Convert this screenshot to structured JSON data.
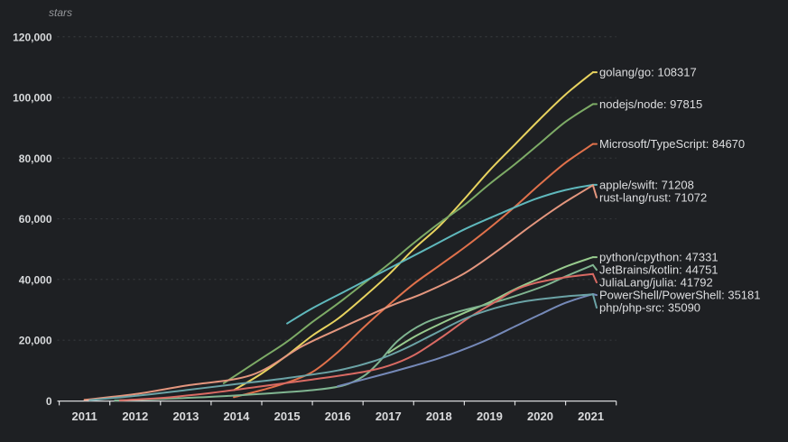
{
  "chart_data": {
    "type": "line",
    "title": "",
    "xlabel": "",
    "ylabel": "stars",
    "xlim": [
      2011,
      2022
    ],
    "ylim": [
      0,
      128000
    ],
    "grid": "horizontal dashed",
    "legend_position": "right edge end-of-line labels",
    "x_tick_labels": [
      "2011",
      "2012",
      "2013",
      "2014",
      "2015",
      "2016",
      "2017",
      "2018",
      "2019",
      "2020",
      "2021"
    ],
    "y_ticks": [
      0,
      20000,
      40000,
      60000,
      80000,
      100000,
      120000
    ],
    "y_tick_labels": [
      "0",
      "20,000",
      "40,000",
      "60,000",
      "80,000",
      "100,000",
      "120,000"
    ],
    "series": [
      {
        "name": "golang/go",
        "final_value": 108317,
        "label": "golang/go: 108317",
        "color": "#e8d35f",
        "points": [
          [
            2014.45,
            3500
          ],
          [
            2015,
            9000
          ],
          [
            2015.5,
            15000
          ],
          [
            2016,
            21500
          ],
          [
            2016.5,
            27000
          ],
          [
            2017,
            34000
          ],
          [
            2017.5,
            41500
          ],
          [
            2018,
            50000
          ],
          [
            2018.5,
            57500
          ],
          [
            2019,
            66500
          ],
          [
            2019.5,
            76000
          ],
          [
            2020,
            84500
          ],
          [
            2020.5,
            93000
          ],
          [
            2021,
            101000
          ],
          [
            2021.54,
            108317
          ]
        ]
      },
      {
        "name": "nodejs/node",
        "final_value": 97815,
        "label": "nodejs/node: 97815",
        "color": "#7dab66",
        "points": [
          [
            2014.25,
            5800
          ],
          [
            2015,
            14000
          ],
          [
            2015.5,
            19500
          ],
          [
            2016,
            26000
          ],
          [
            2016.5,
            32000
          ],
          [
            2017,
            38500
          ],
          [
            2017.5,
            45000
          ],
          [
            2018,
            52000
          ],
          [
            2018.5,
            58500
          ],
          [
            2019,
            64500
          ],
          [
            2019.5,
            71500
          ],
          [
            2020,
            78000
          ],
          [
            2020.5,
            85000
          ],
          [
            2021,
            92000
          ],
          [
            2021.54,
            97815
          ]
        ]
      },
      {
        "name": "Microsoft/TypeScript",
        "final_value": 84670,
        "label": "Microsoft/TypeScript: 84670",
        "color": "#e0714b",
        "points": [
          [
            2014.45,
            1200
          ],
          [
            2015,
            3500
          ],
          [
            2015.5,
            6000
          ],
          [
            2016,
            9500
          ],
          [
            2016.5,
            16000
          ],
          [
            2017,
            24000
          ],
          [
            2017.5,
            31500
          ],
          [
            2018,
            38500
          ],
          [
            2018.5,
            44500
          ],
          [
            2019,
            50500
          ],
          [
            2019.5,
            57000
          ],
          [
            2020,
            64000
          ],
          [
            2020.5,
            71500
          ],
          [
            2021,
            78500
          ],
          [
            2021.54,
            84670
          ]
        ]
      },
      {
        "name": "apple/swift",
        "final_value": 71208,
        "label": "apple/swift: 71208",
        "color": "#5fb8bc",
        "points": [
          [
            2015.5,
            25500
          ],
          [
            2016,
            30500
          ],
          [
            2016.75,
            37000
          ],
          [
            2017.5,
            43500
          ],
          [
            2018.25,
            50000
          ],
          [
            2019,
            56500
          ],
          [
            2019.75,
            62000
          ],
          [
            2020.4,
            66500
          ],
          [
            2021,
            69500
          ],
          [
            2021.54,
            71208
          ]
        ]
      },
      {
        "name": "rust-lang/rust",
        "final_value": 71072,
        "label": "rust-lang/rust: 71072",
        "color": "#e4967e",
        "points": [
          [
            2011.5,
            300
          ],
          [
            2012.5,
            2200
          ],
          [
            2013.5,
            5000
          ],
          [
            2014.8,
            8500
          ],
          [
            2015.8,
            18000
          ],
          [
            2016.5,
            23500
          ],
          [
            2017.5,
            31000
          ],
          [
            2018.2,
            35500
          ],
          [
            2019,
            42000
          ],
          [
            2019.7,
            50000
          ],
          [
            2020.3,
            57500
          ],
          [
            2020.9,
            64500
          ],
          [
            2021.54,
            71072
          ]
        ]
      },
      {
        "name": "python/cpython",
        "final_value": 47331,
        "label": "python/cpython: 47331",
        "color": "#98cb8e",
        "points": [
          [
            2017.5,
            15800
          ],
          [
            2018,
            21000
          ],
          [
            2018.5,
            25200
          ],
          [
            2019,
            29000
          ],
          [
            2019.5,
            32500
          ],
          [
            2020,
            36800
          ],
          [
            2020.5,
            40500
          ],
          [
            2021,
            44200
          ],
          [
            2021.54,
            47331
          ]
        ]
      },
      {
        "name": "JetBrains/kotlin",
        "final_value": 44751,
        "label": "JetBrains/kotlin: 44751",
        "color": "#80b591",
        "points": [
          [
            2012.1,
            100
          ],
          [
            2013,
            600
          ],
          [
            2014,
            1300
          ],
          [
            2015,
            2300
          ],
          [
            2016,
            3500
          ],
          [
            2016.6,
            5000
          ],
          [
            2017,
            8000
          ],
          [
            2017.3,
            12500
          ],
          [
            2017.7,
            20000
          ],
          [
            2018.2,
            25500
          ],
          [
            2018.8,
            29000
          ],
          [
            2019.5,
            32000
          ],
          [
            2020,
            34500
          ],
          [
            2020.6,
            38000
          ],
          [
            2021,
            41000
          ],
          [
            2021.54,
            44751
          ]
        ]
      },
      {
        "name": "JuliaLang/julia",
        "final_value": 41792,
        "label": "JuliaLang/julia: 41792",
        "color": "#d96a63",
        "points": [
          [
            2012.2,
            150
          ],
          [
            2013,
            900
          ],
          [
            2014,
            2600
          ],
          [
            2015,
            4800
          ],
          [
            2016,
            7000
          ],
          [
            2017,
            9500
          ],
          [
            2017.5,
            11500
          ],
          [
            2018,
            15000
          ],
          [
            2018.6,
            21500
          ],
          [
            2019.1,
            27500
          ],
          [
            2019.6,
            32500
          ],
          [
            2020,
            36500
          ],
          [
            2020.4,
            38800
          ],
          [
            2021,
            40700
          ],
          [
            2021.54,
            41792
          ]
        ]
      },
      {
        "name": "PowerShell/PowerShell",
        "final_value": 35181,
        "label": "PowerShell/PowerShell: 35181",
        "color": "#7589b8",
        "points": [
          [
            2016.5,
            4800
          ],
          [
            2017,
            7000
          ],
          [
            2017.5,
            9200
          ],
          [
            2018,
            11500
          ],
          [
            2018.5,
            14000
          ],
          [
            2019,
            17000
          ],
          [
            2019.5,
            20500
          ],
          [
            2020,
            24500
          ],
          [
            2020.5,
            28500
          ],
          [
            2021,
            32300
          ],
          [
            2021.54,
            35181
          ]
        ]
      },
      {
        "name": "php/php-src",
        "final_value": 35090,
        "label": "php/php-src: 35090",
        "color": "#6ba3a6",
        "points": [
          [
            2011.6,
            200
          ],
          [
            2012.5,
            1600
          ],
          [
            2013.5,
            3500
          ],
          [
            2014.5,
            5500
          ],
          [
            2015.5,
            7500
          ],
          [
            2016.5,
            10000
          ],
          [
            2017.2,
            13000
          ],
          [
            2017.8,
            17000
          ],
          [
            2018.4,
            22000
          ],
          [
            2019,
            27000
          ],
          [
            2019.6,
            30500
          ],
          [
            2020.2,
            32800
          ],
          [
            2021,
            34400
          ],
          [
            2021.54,
            35090
          ]
        ]
      }
    ]
  }
}
